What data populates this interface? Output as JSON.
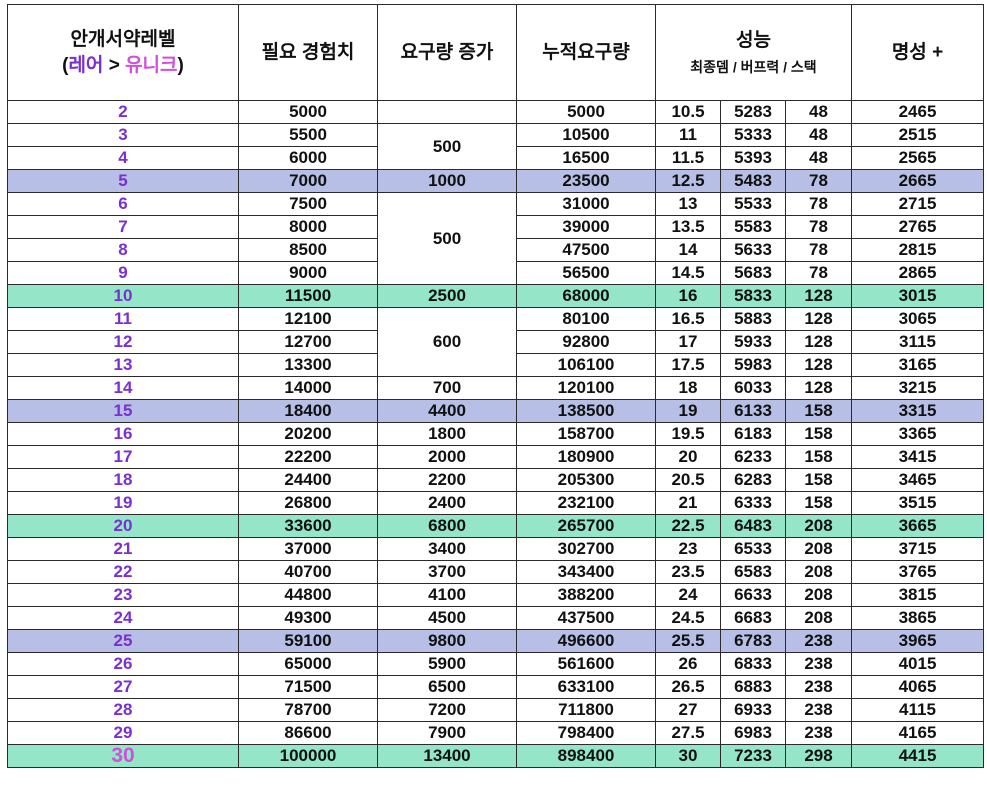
{
  "header": {
    "level_title": "안개서약레벨",
    "level_sub_open": "(",
    "level_sub_rare": "레어",
    "level_sub_arrow": " > ",
    "level_sub_unique": "유니크",
    "level_sub_close": ")",
    "required_exp": "필요 경험치",
    "increase": "요구량 증가",
    "cumulative": "누적요구량",
    "performance": "성능",
    "performance_sub": "최종뎀 / 버프력 / 스택",
    "fame": "명성 +"
  },
  "colors": {
    "level_text": "#7a2fd0",
    "unique_text": "#d14fd9",
    "highlight_blue": "#b8bfe6",
    "highlight_green": "#95e6c9",
    "border": "#2a2a2a"
  },
  "rows": [
    {
      "level": "2",
      "exp": "5000",
      "increase": "",
      "cumulative": "5000",
      "final_dmg": "10.5",
      "buff": "5283",
      "stack": "48",
      "fame": "2465",
      "highlight": ""
    },
    {
      "level": "3",
      "exp": "5500",
      "increase": "500",
      "cumulative": "10500",
      "final_dmg": "11",
      "buff": "5333",
      "stack": "48",
      "fame": "2515",
      "highlight": ""
    },
    {
      "level": "4",
      "exp": "6000",
      "increase": "",
      "cumulative": "16500",
      "final_dmg": "11.5",
      "buff": "5393",
      "stack": "48",
      "fame": "2565",
      "highlight": ""
    },
    {
      "level": "5",
      "exp": "7000",
      "increase": "1000",
      "cumulative": "23500",
      "final_dmg": "12.5",
      "buff": "5483",
      "stack": "78",
      "fame": "2665",
      "highlight": "blue"
    },
    {
      "level": "6",
      "exp": "7500",
      "increase": "500",
      "cumulative": "31000",
      "final_dmg": "13",
      "buff": "5533",
      "stack": "78",
      "fame": "2715",
      "highlight": ""
    },
    {
      "level": "7",
      "exp": "8000",
      "increase": "",
      "cumulative": "39000",
      "final_dmg": "13.5",
      "buff": "5583",
      "stack": "78",
      "fame": "2765",
      "highlight": ""
    },
    {
      "level": "8",
      "exp": "8500",
      "increase": "",
      "cumulative": "47500",
      "final_dmg": "14",
      "buff": "5633",
      "stack": "78",
      "fame": "2815",
      "highlight": ""
    },
    {
      "level": "9",
      "exp": "9000",
      "increase": "",
      "cumulative": "56500",
      "final_dmg": "14.5",
      "buff": "5683",
      "stack": "78",
      "fame": "2865",
      "highlight": ""
    },
    {
      "level": "10",
      "exp": "11500",
      "increase": "2500",
      "cumulative": "68000",
      "final_dmg": "16",
      "buff": "5833",
      "stack": "128",
      "fame": "3015",
      "highlight": "green"
    },
    {
      "level": "11",
      "exp": "12100",
      "increase": "600",
      "cumulative": "80100",
      "final_dmg": "16.5",
      "buff": "5883",
      "stack": "128",
      "fame": "3065",
      "highlight": ""
    },
    {
      "level": "12",
      "exp": "12700",
      "increase": "",
      "cumulative": "92800",
      "final_dmg": "17",
      "buff": "5933",
      "stack": "128",
      "fame": "3115",
      "highlight": ""
    },
    {
      "level": "13",
      "exp": "13300",
      "increase": "",
      "cumulative": "106100",
      "final_dmg": "17.5",
      "buff": "5983",
      "stack": "128",
      "fame": "3165",
      "highlight": ""
    },
    {
      "level": "14",
      "exp": "14000",
      "increase": "700",
      "cumulative": "120100",
      "final_dmg": "18",
      "buff": "6033",
      "stack": "128",
      "fame": "3215",
      "highlight": ""
    },
    {
      "level": "15",
      "exp": "18400",
      "increase": "4400",
      "cumulative": "138500",
      "final_dmg": "19",
      "buff": "6133",
      "stack": "158",
      "fame": "3315",
      "highlight": "blue"
    },
    {
      "level": "16",
      "exp": "20200",
      "increase": "1800",
      "cumulative": "158700",
      "final_dmg": "19.5",
      "buff": "6183",
      "stack": "158",
      "fame": "3365",
      "highlight": ""
    },
    {
      "level": "17",
      "exp": "22200",
      "increase": "2000",
      "cumulative": "180900",
      "final_dmg": "20",
      "buff": "6233",
      "stack": "158",
      "fame": "3415",
      "highlight": ""
    },
    {
      "level": "18",
      "exp": "24400",
      "increase": "2200",
      "cumulative": "205300",
      "final_dmg": "20.5",
      "buff": "6283",
      "stack": "158",
      "fame": "3465",
      "highlight": ""
    },
    {
      "level": "19",
      "exp": "26800",
      "increase": "2400",
      "cumulative": "232100",
      "final_dmg": "21",
      "buff": "6333",
      "stack": "158",
      "fame": "3515",
      "highlight": ""
    },
    {
      "level": "20",
      "exp": "33600",
      "increase": "6800",
      "cumulative": "265700",
      "final_dmg": "22.5",
      "buff": "6483",
      "stack": "208",
      "fame": "3665",
      "highlight": "green"
    },
    {
      "level": "21",
      "exp": "37000",
      "increase": "3400",
      "cumulative": "302700",
      "final_dmg": "23",
      "buff": "6533",
      "stack": "208",
      "fame": "3715",
      "highlight": ""
    },
    {
      "level": "22",
      "exp": "40700",
      "increase": "3700",
      "cumulative": "343400",
      "final_dmg": "23.5",
      "buff": "6583",
      "stack": "208",
      "fame": "3765",
      "highlight": ""
    },
    {
      "level": "23",
      "exp": "44800",
      "increase": "4100",
      "cumulative": "388200",
      "final_dmg": "24",
      "buff": "6633",
      "stack": "208",
      "fame": "3815",
      "highlight": ""
    },
    {
      "level": "24",
      "exp": "49300",
      "increase": "4500",
      "cumulative": "437500",
      "final_dmg": "24.5",
      "buff": "6683",
      "stack": "208",
      "fame": "3865",
      "highlight": ""
    },
    {
      "level": "25",
      "exp": "59100",
      "increase": "9800",
      "cumulative": "496600",
      "final_dmg": "25.5",
      "buff": "6783",
      "stack": "238",
      "fame": "3965",
      "highlight": "blue"
    },
    {
      "level": "26",
      "exp": "65000",
      "increase": "5900",
      "cumulative": "561600",
      "final_dmg": "26",
      "buff": "6833",
      "stack": "238",
      "fame": "4015",
      "highlight": ""
    },
    {
      "level": "27",
      "exp": "71500",
      "increase": "6500",
      "cumulative": "633100",
      "final_dmg": "26.5",
      "buff": "6883",
      "stack": "238",
      "fame": "4065",
      "highlight": ""
    },
    {
      "level": "28",
      "exp": "78700",
      "increase": "7200",
      "cumulative": "711800",
      "final_dmg": "27",
      "buff": "6933",
      "stack": "238",
      "fame": "4115",
      "highlight": ""
    },
    {
      "level": "29",
      "exp": "86600",
      "increase": "7900",
      "cumulative": "798400",
      "final_dmg": "27.5",
      "buff": "6983",
      "stack": "238",
      "fame": "4165",
      "highlight": ""
    },
    {
      "level": "30",
      "exp": "100000",
      "increase": "13400",
      "cumulative": "898400",
      "final_dmg": "30",
      "buff": "7233",
      "stack": "298",
      "fame": "4415",
      "highlight": "green"
    }
  ]
}
